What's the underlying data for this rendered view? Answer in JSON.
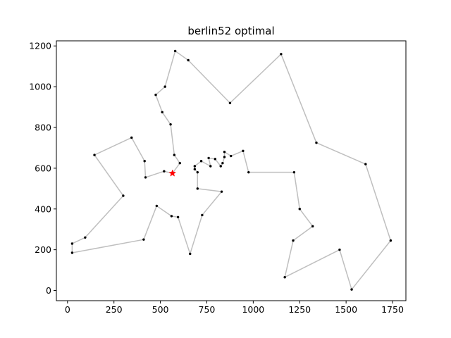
{
  "chart_data": {
    "type": "scatter",
    "title": "berlin52 optimal",
    "xlabel": "",
    "ylabel": "",
    "xlim": [
      -60,
      1822
    ],
    "ylim": [
      -50,
      1225
    ],
    "xticks": [
      0,
      250,
      500,
      750,
      1000,
      1250,
      1500,
      1750
    ],
    "yticks": [
      0,
      200,
      400,
      600,
      800,
      1000,
      1200
    ],
    "grid": false,
    "legend": "none",
    "route_color": "#bfbfbf",
    "node_color": "#000000",
    "start_marker": {
      "x": 565,
      "y": 575,
      "color": "#ff0000",
      "shape": "star"
    },
    "route": [
      [
        565,
        575
      ],
      [
        605,
        625
      ],
      [
        575,
        665
      ],
      [
        555,
        815
      ],
      [
        510,
        875
      ],
      [
        475,
        960
      ],
      [
        525,
        1000
      ],
      [
        580,
        1175
      ],
      [
        650,
        1130
      ],
      [
        875,
        920
      ],
      [
        1150,
        1160
      ],
      [
        1340,
        725
      ],
      [
        1605,
        620
      ],
      [
        1740,
        245
      ],
      [
        1530,
        5
      ],
      [
        1465,
        200
      ],
      [
        1170,
        65
      ],
      [
        1215,
        245
      ],
      [
        1320,
        315
      ],
      [
        1250,
        400
      ],
      [
        1220,
        580
      ],
      [
        975,
        580
      ],
      [
        945,
        685
      ],
      [
        880,
        660
      ],
      [
        845,
        680
      ],
      [
        845,
        655
      ],
      [
        835,
        625
      ],
      [
        825,
        610
      ],
      [
        795,
        645
      ],
      [
        760,
        650
      ],
      [
        770,
        610
      ],
      [
        720,
        635
      ],
      [
        685,
        610
      ],
      [
        685,
        595
      ],
      [
        700,
        580
      ],
      [
        700,
        500
      ],
      [
        830,
        485
      ],
      [
        725,
        370
      ],
      [
        660,
        180
      ],
      [
        595,
        360
      ],
      [
        560,
        365
      ],
      [
        480,
        415
      ],
      [
        410,
        250
      ],
      [
        25,
        185
      ],
      [
        25,
        230
      ],
      [
        95,
        260
      ],
      [
        300,
        465
      ],
      [
        145,
        665
      ],
      [
        345,
        750
      ],
      [
        415,
        635
      ],
      [
        420,
        555
      ],
      [
        520,
        585
      ],
      [
        565,
        575
      ]
    ]
  }
}
